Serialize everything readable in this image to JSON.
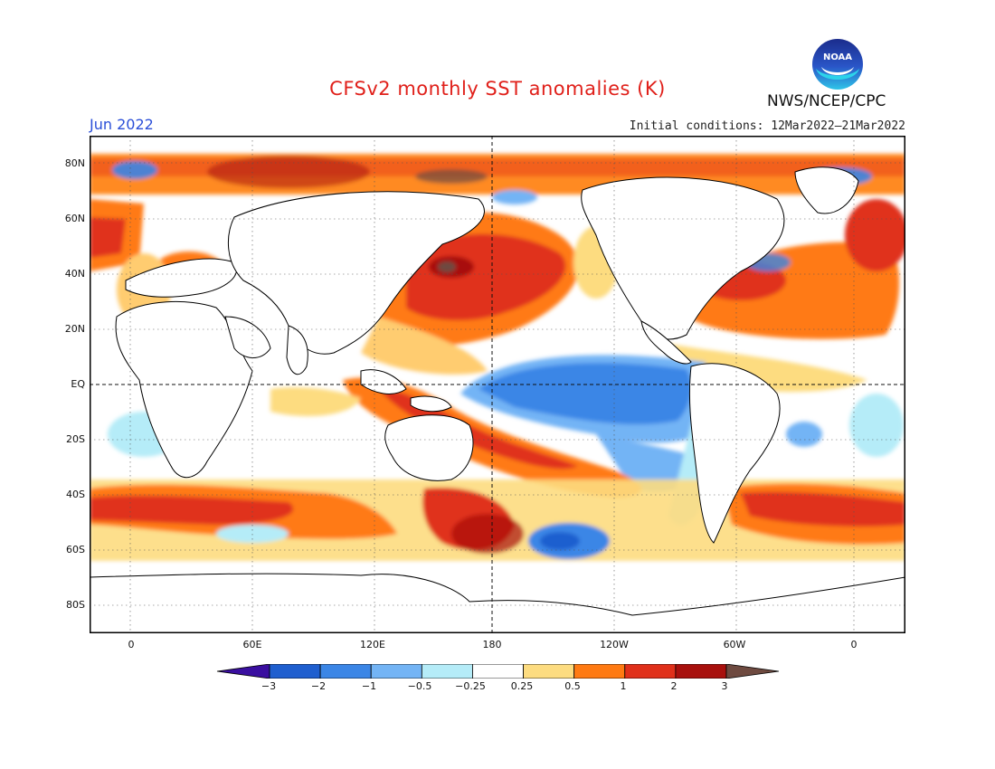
{
  "header": {
    "title": "CFSv2 monthly SST anomalies (K)",
    "month": "Jun 2022",
    "initial_conditions": "Initial conditions: 12Mar2022–21Mar2022",
    "agency": "NWS/NCEP/CPC",
    "logo_text": "NOAA"
  },
  "map": {
    "lat_labels": [
      "80N",
      "60N",
      "40N",
      "20N",
      "EQ",
      "20S",
      "40S",
      "60S",
      "80S"
    ],
    "lon_labels": [
      "0",
      "60E",
      "120E",
      "180",
      "120W",
      "60W",
      "0"
    ],
    "variable": "SST anomaly",
    "units": "K"
  },
  "colorbar": {
    "labels": [
      "−3",
      "−2",
      "−1",
      "−0.5",
      "−0.25",
      "0.25",
      "0.5",
      "1",
      "2",
      "3"
    ],
    "colors": [
      "#3a0fa0",
      "#1f5fcf",
      "#3b86e6",
      "#73b4f5",
      "#b5ecf8",
      "#ffffff",
      "#fddc80",
      "#ff7a12",
      "#e0301a",
      "#a8100d",
      "#6e4a40"
    ]
  },
  "colors": {
    "title": "#e0201a",
    "month": "#2b4fd8",
    "land": "#ffffff",
    "coast": "#000000"
  }
}
